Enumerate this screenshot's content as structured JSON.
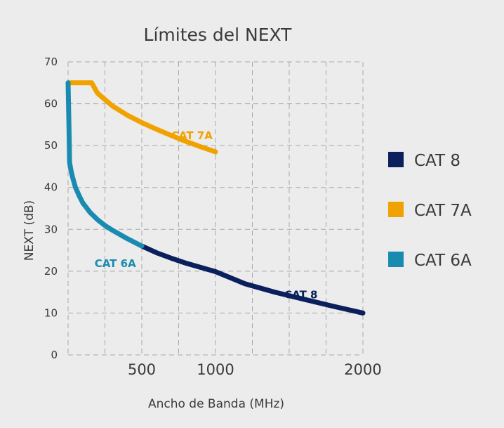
{
  "chart_data": {
    "type": "line",
    "title": "Límites del NEXT",
    "xlabel": "Ancho de Banda (MHz)",
    "ylabel": "NEXT (dB)",
    "xlim": [
      0,
      2000
    ],
    "ylim": [
      0,
      70
    ],
    "yticks": [
      0,
      10,
      20,
      30,
      40,
      50,
      60,
      70
    ],
    "xticks": [
      {
        "value": 500,
        "label": "500",
        "color": "#1a8bb0"
      },
      {
        "value": 1000,
        "label": "1000",
        "color": "#f0a300"
      },
      {
        "value": 2000,
        "label": "2000",
        "color": "#0a1f5c"
      }
    ],
    "grid": true,
    "legend_position": "right",
    "series": [
      {
        "name": "CAT 8",
        "color": "#0a1f5c",
        "label": "CAT 8",
        "x": [
          500,
          600,
          700,
          800,
          900,
          1000,
          1200,
          1400,
          1600,
          1800,
          2000
        ],
        "y": [
          26.0,
          24.4,
          23.1,
          21.9,
          20.9,
          19.9,
          17.0,
          15.0,
          13.3,
          11.6,
          10.0
        ]
      },
      {
        "name": "CAT 7A",
        "color": "#f0a300",
        "label": "CAT 7A",
        "x": [
          0,
          100,
          160,
          200,
          300,
          400,
          500,
          600,
          700,
          800,
          900,
          1000
        ],
        "y": [
          65,
          65,
          65,
          62.5,
          59.5,
          57.3,
          55.5,
          53.9,
          52.4,
          51.0,
          49.7,
          48.5
        ]
      },
      {
        "name": "CAT 6A",
        "color": "#1a8bb0",
        "label": "CAT 6A",
        "x": [
          0,
          3,
          6,
          10,
          20,
          30,
          50,
          75,
          100,
          150,
          200,
          250,
          300,
          350,
          400,
          450,
          500
        ],
        "y": [
          65,
          60,
          54,
          46,
          44,
          42.5,
          40,
          38,
          36.3,
          34,
          32.3,
          30.9,
          29.8,
          28.8,
          27.8,
          26.9,
          26.0
        ]
      }
    ]
  }
}
